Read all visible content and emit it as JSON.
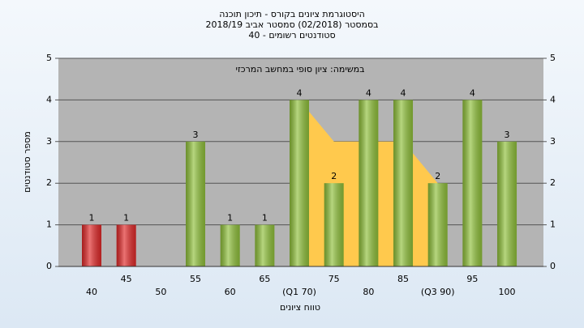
{
  "chart_data": {
    "type": "bar",
    "title": "היסטוגרמת ציונים בקורס - תיכון תוכנה",
    "subtitle": "בסמסטר  (02/2018)  סמסטר אביב 2018/19",
    "subtitle2": "סטודנטים רשומים - 40",
    "annotation": "במשימה: ציון סופי במחשב המרכזי",
    "x_label": "טווח ציונים",
    "y_label": "מספר סטודנטים",
    "categories": [
      "40",
      "45",
      "50",
      "55",
      "60",
      "65",
      "(Q1 70)",
      "75",
      "80",
      "85",
      "(Q3 90)",
      "95",
      "100"
    ],
    "values": [
      1,
      1,
      0,
      3,
      1,
      1,
      4,
      2,
      4,
      4,
      2,
      4,
      3
    ],
    "colors": [
      "#e02828",
      "#e02828",
      "#8fc03a",
      "#8fc03a",
      "#8fc03a",
      "#8fc03a",
      "#8fc03a",
      "#8fc03a",
      "#8fc03a",
      "#8fc03a",
      "#8fc03a",
      "#8fc03a",
      "#8fc03a"
    ],
    "area": {
      "color": "#ffc94d",
      "values": [
        null,
        null,
        null,
        null,
        null,
        null,
        4,
        3,
        3,
        3,
        2,
        null,
        null
      ]
    },
    "ylim": [
      0,
      5
    ],
    "yticks": [
      0,
      1,
      2,
      3,
      4,
      5
    ],
    "y2lim": [
      0,
      5
    ],
    "y2ticks": [
      0,
      1,
      2,
      3,
      4,
      5
    ],
    "grid": true
  }
}
